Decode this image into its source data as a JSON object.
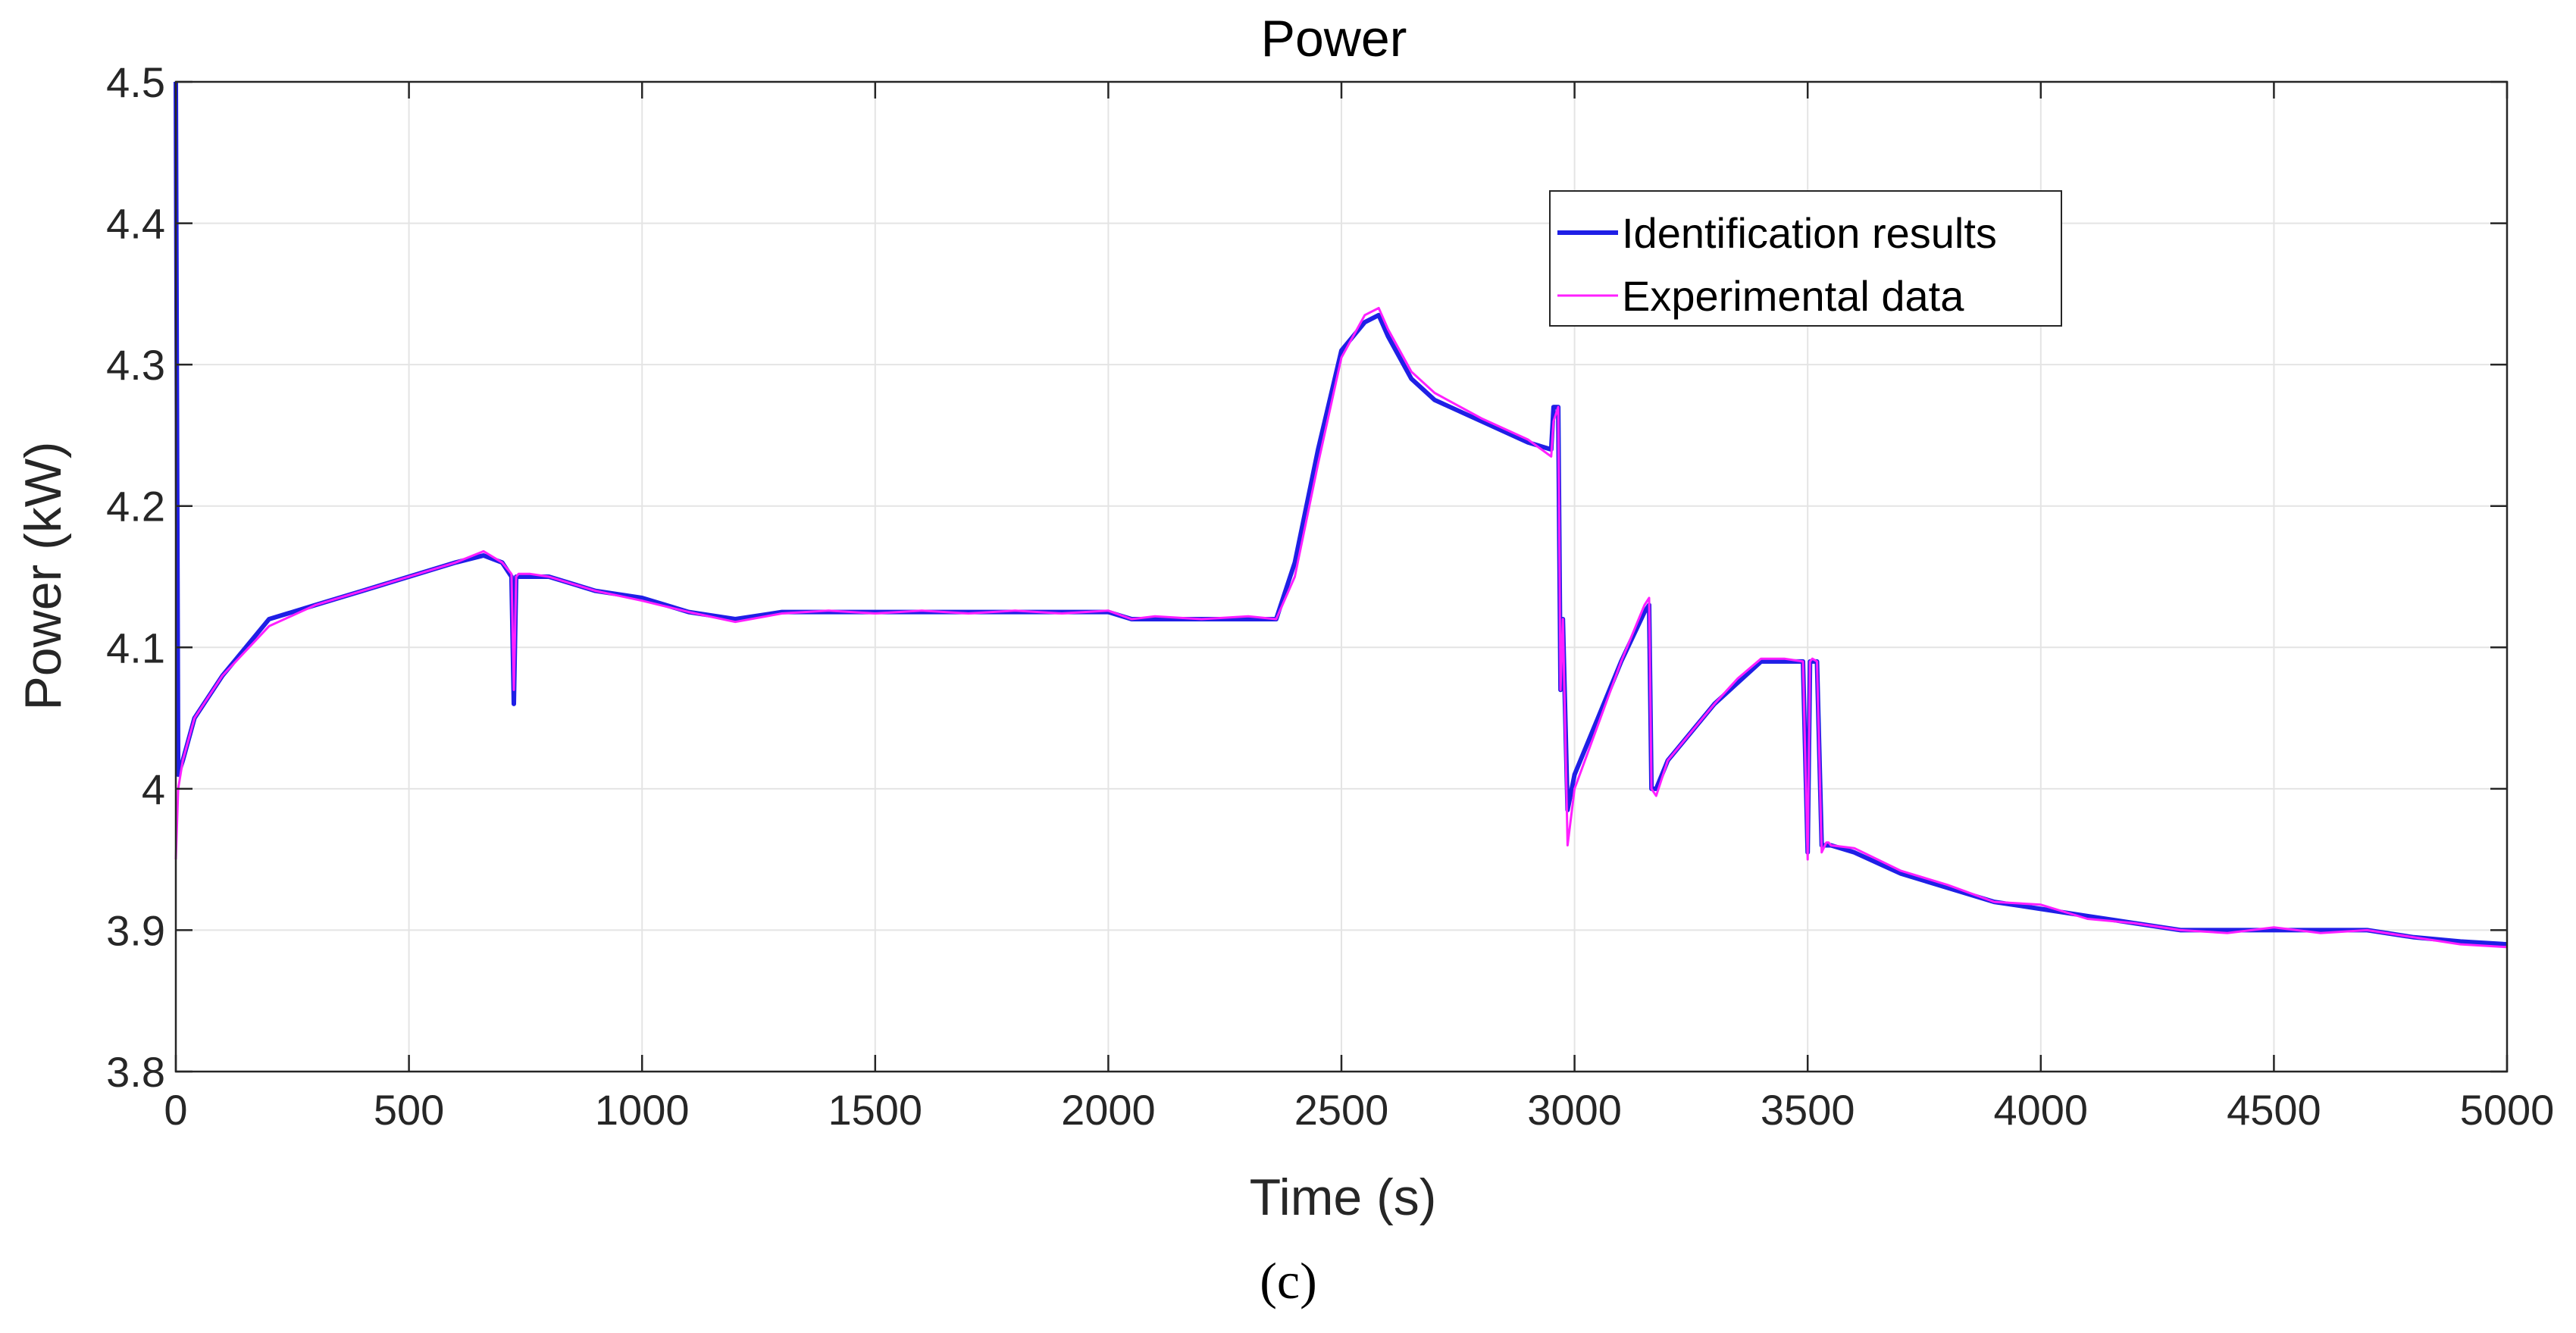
{
  "chart_data": {
    "type": "line",
    "title": "Power",
    "xlabel": "Time (s)",
    "ylabel": "Power (kW)",
    "caption": "(c)",
    "xlim": [
      0,
      5000
    ],
    "ylim": [
      3.8,
      4.5
    ],
    "xticks": [
      0,
      500,
      1000,
      1500,
      2000,
      2500,
      3000,
      3500,
      4000,
      4500,
      5000
    ],
    "xtick_labels": [
      "0",
      "500",
      "1000",
      "1500",
      "2000",
      "2500",
      "3000",
      "3500",
      "4000",
      "4500",
      "5000"
    ],
    "yticks": [
      3.8,
      3.9,
      4.0,
      4.1,
      4.2,
      4.3,
      4.4,
      4.5
    ],
    "ytick_labels": [
      "3.8",
      "3.9",
      "4",
      "4.1",
      "4.2",
      "4.3",
      "4.4",
      "4.5"
    ],
    "grid": true,
    "legend_position": "top-right",
    "series": [
      {
        "name": "Identification results",
        "color": "#1f1fe6",
        "x": [
          0,
          5,
          15,
          40,
          100,
          200,
          300,
          400,
          500,
          600,
          660,
          700,
          720,
          725,
          730,
          735,
          760,
          800,
          900,
          1000,
          1100,
          1200,
          1300,
          1400,
          1500,
          1600,
          1700,
          1800,
          1900,
          2000,
          2050,
          2100,
          2200,
          2300,
          2360,
          2400,
          2450,
          2500,
          2550,
          2580,
          2600,
          2650,
          2700,
          2800,
          2900,
          2950,
          2955,
          2965,
          2970,
          2975,
          2985,
          3000,
          3050,
          3100,
          3150,
          3160,
          3165,
          3175,
          3200,
          3250,
          3300,
          3350,
          3400,
          3450,
          3490,
          3500,
          3505,
          3510,
          3520,
          3530,
          3540,
          3545,
          3550,
          3600,
          3700,
          3800,
          3900,
          4000,
          4100,
          4200,
          4300,
          4400,
          4500,
          4600,
          4700,
          4800,
          4900,
          5000
        ],
        "y": [
          4.5,
          4.01,
          4.02,
          4.05,
          4.08,
          4.12,
          4.13,
          4.14,
          4.15,
          4.16,
          4.165,
          4.16,
          4.15,
          4.06,
          4.15,
          4.15,
          4.15,
          4.15,
          4.14,
          4.135,
          4.125,
          4.12,
          4.125,
          4.125,
          4.125,
          4.125,
          4.125,
          4.125,
          4.125,
          4.125,
          4.12,
          4.12,
          4.12,
          4.12,
          4.12,
          4.16,
          4.24,
          4.31,
          4.33,
          4.335,
          4.32,
          4.29,
          4.275,
          4.26,
          4.245,
          4.24,
          4.27,
          4.27,
          4.07,
          4.12,
          3.985,
          4.01,
          4.05,
          4.09,
          4.125,
          4.13,
          4.0,
          4.0,
          4.02,
          4.04,
          4.06,
          4.075,
          4.09,
          4.09,
          4.09,
          3.955,
          4.09,
          4.09,
          4.09,
          3.96,
          3.96,
          3.96,
          3.96,
          3.955,
          3.94,
          3.93,
          3.92,
          3.915,
          3.91,
          3.905,
          3.9,
          3.9,
          3.9,
          3.9,
          3.9,
          3.895,
          3.892,
          3.89
        ]
      },
      {
        "name": "Experimental data",
        "color": "#ff1fff",
        "x": [
          0,
          5,
          15,
          40,
          100,
          200,
          300,
          400,
          500,
          600,
          660,
          700,
          720,
          725,
          730,
          735,
          760,
          800,
          900,
          1000,
          1100,
          1200,
          1300,
          1400,
          1500,
          1600,
          1700,
          1800,
          1900,
          2000,
          2050,
          2100,
          2200,
          2300,
          2360,
          2400,
          2450,
          2500,
          2550,
          2580,
          2600,
          2650,
          2700,
          2800,
          2900,
          2950,
          2955,
          2965,
          2970,
          2975,
          2985,
          3000,
          3050,
          3100,
          3150,
          3160,
          3165,
          3175,
          3200,
          3250,
          3300,
          3350,
          3400,
          3450,
          3490,
          3500,
          3505,
          3510,
          3520,
          3530,
          3540,
          3545,
          3550,
          3600,
          3700,
          3800,
          3900,
          4000,
          4100,
          4200,
          4300,
          4400,
          4500,
          4600,
          4700,
          4800,
          4900,
          5000
        ],
        "y": [
          3.95,
          4.0,
          4.02,
          4.05,
          4.08,
          4.115,
          4.13,
          4.14,
          4.15,
          4.16,
          4.168,
          4.16,
          4.152,
          4.07,
          4.15,
          4.152,
          4.152,
          4.15,
          4.14,
          4.133,
          4.125,
          4.118,
          4.124,
          4.126,
          4.124,
          4.126,
          4.124,
          4.126,
          4.124,
          4.126,
          4.12,
          4.122,
          4.12,
          4.122,
          4.12,
          4.15,
          4.23,
          4.305,
          4.335,
          4.34,
          4.325,
          4.295,
          4.28,
          4.262,
          4.247,
          4.235,
          4.26,
          4.27,
          4.07,
          4.12,
          3.96,
          4.0,
          4.045,
          4.09,
          4.13,
          4.135,
          4.0,
          3.995,
          4.02,
          4.04,
          4.06,
          4.078,
          4.092,
          4.092,
          4.09,
          3.95,
          4.09,
          4.092,
          4.09,
          3.955,
          3.962,
          3.962,
          3.96,
          3.958,
          3.942,
          3.932,
          3.92,
          3.918,
          3.908,
          3.905,
          3.9,
          3.898,
          3.902,
          3.898,
          3.9,
          3.895,
          3.89,
          3.888
        ]
      }
    ]
  }
}
